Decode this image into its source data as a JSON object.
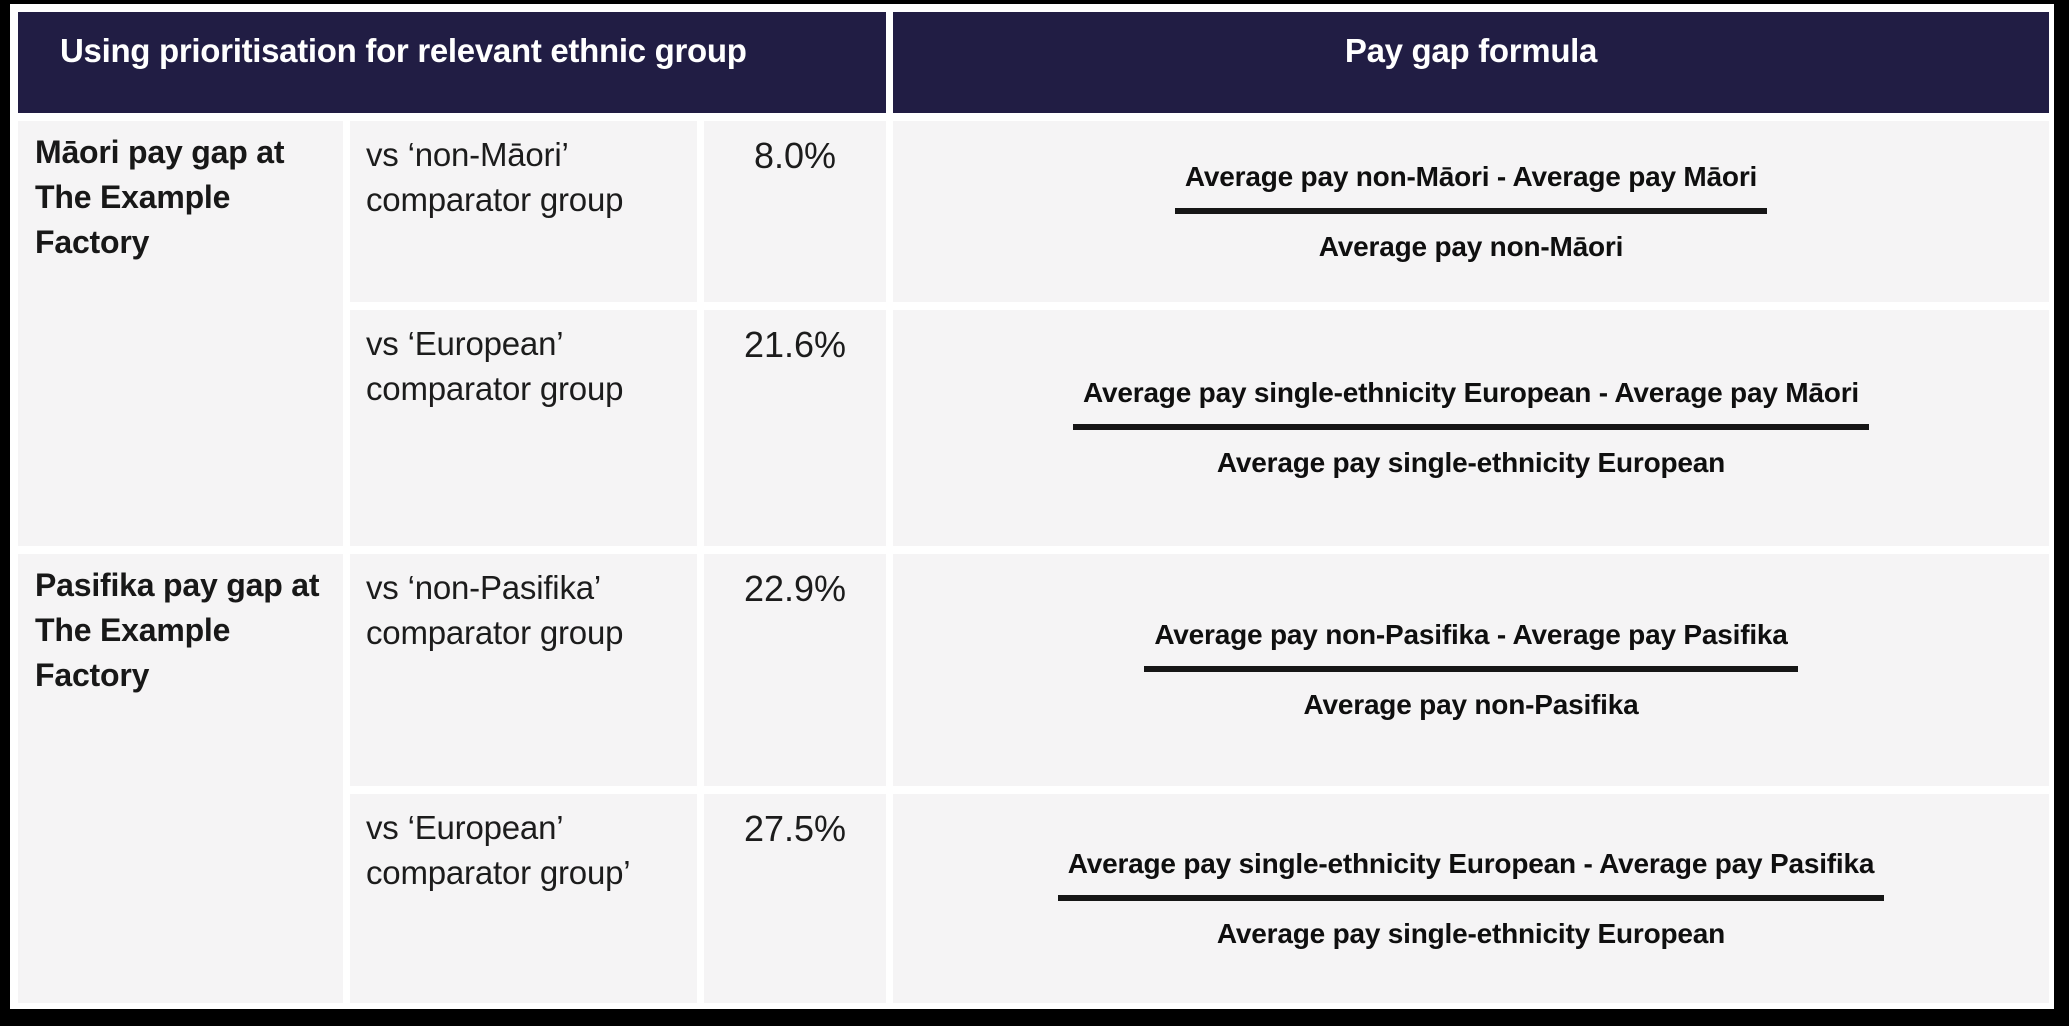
{
  "theme": {
    "page-bg": "#000000",
    "card-bg": "#ffffff",
    "cell-bg": "#f5f4f5",
    "header-bg": "#211d44",
    "header-text": "#ffffff",
    "body-text": "#181818",
    "formula-text": "#0f0f0f",
    "bar-color": "#161616"
  },
  "header": {
    "left": "Using prioritisation for relevant ethnic group",
    "right": "Pay gap formula"
  },
  "groups": [
    {
      "label": "Māori pay gap at The Example Factory",
      "rows": [
        {
          "comparator": "vs ‘non-Māori’ comparator group",
          "gap": "8.0%",
          "formula": {
            "numerator": "Average pay non-Māori - Average pay Māori",
            "denominator": "Average pay non-Māori"
          }
        },
        {
          "comparator": "vs ‘European’ comparator group",
          "gap": "21.6%",
          "formula": {
            "numerator": "Average pay single-ethnicity European - Average pay Māori",
            "denominator": "Average pay single-ethnicity European"
          }
        }
      ]
    },
    {
      "label": "Pasifika pay gap at The Example Factory",
      "rows": [
        {
          "comparator": "vs ‘non-Pasifika’ comparator group",
          "gap": "22.9%",
          "formula": {
            "numerator": "Average pay non-Pasifika - Average pay Pasifika",
            "denominator": "Average pay non-Pasifika"
          }
        },
        {
          "comparator": "vs ‘European’ comparator group’",
          "gap": "27.5%",
          "formula": {
            "numerator": "Average pay single-ethnicity European - Average pay Pasifika",
            "denominator": "Average pay single-ethnicity European"
          }
        }
      ]
    }
  ]
}
